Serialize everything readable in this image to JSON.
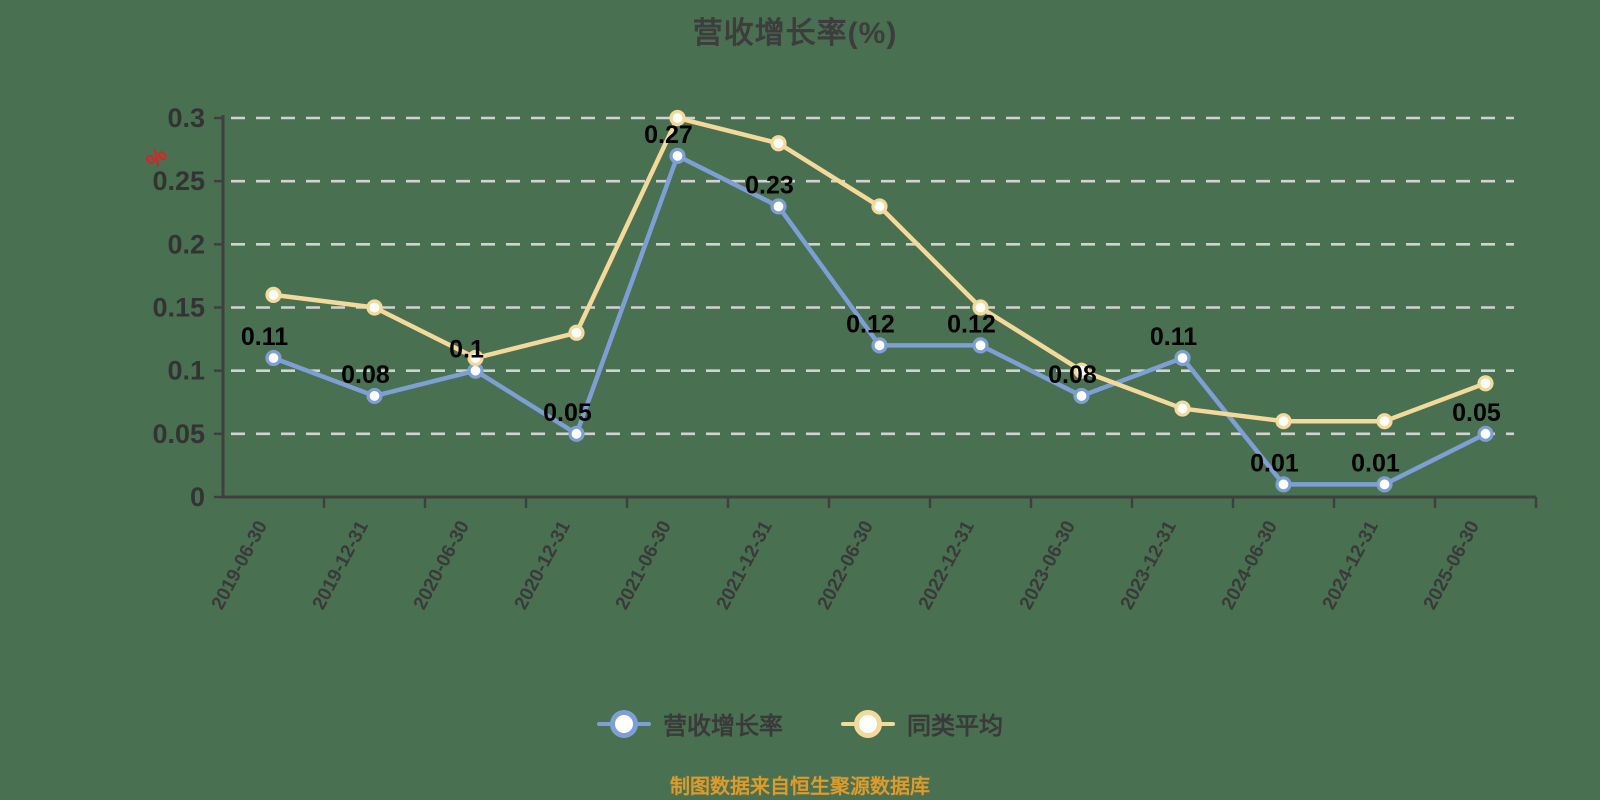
{
  "title": "营收增长率(%)",
  "y_axis_unit": "%",
  "caption": "制图数据来自恒生聚源数据库",
  "colors": {
    "background": "#4a7052",
    "grid": "#d2d2d2",
    "axis": "#3f3f3f",
    "axis_label": "#333333",
    "x_axis_label": "#3a3a3a",
    "data_label": "#000000",
    "title": "#3d3d3d",
    "legend_label": "#3a3a3a",
    "caption": "#dd9b2a",
    "unit": "#e02020",
    "marker_fill": "#ffffff",
    "series_blue": "#7e9fd4",
    "series_yellow": "#f3da9a"
  },
  "chart_data": {
    "type": "line",
    "title": "营收增长率(%)",
    "xlabel": "",
    "ylabel": "%",
    "ylim": [
      0,
      0.3
    ],
    "yticks": [
      0,
      0.05,
      0.1,
      0.15,
      0.2,
      0.25,
      0.3
    ],
    "grid": "dashed horizontal",
    "legend_position": "bottom",
    "categories": [
      "2019-06-30",
      "2019-12-31",
      "2020-06-30",
      "2020-12-31",
      "2021-06-30",
      "2021-12-31",
      "2022-06-30",
      "2022-12-31",
      "2023-06-30",
      "2023-12-31",
      "2024-06-30",
      "2024-12-31",
      "2025-06-30"
    ],
    "series": [
      {
        "name": "营收增长率",
        "color": "#7e9fd4",
        "show_labels": true,
        "values": [
          0.11,
          0.08,
          0.1,
          0.05,
          0.27,
          0.23,
          0.12,
          0.12,
          0.08,
          0.11,
          0.01,
          0.01,
          0.05
        ]
      },
      {
        "name": "同类平均",
        "color": "#f3da9a",
        "show_labels": false,
        "values": [
          0.16,
          0.15,
          0.11,
          0.13,
          0.3,
          0.28,
          0.23,
          0.15,
          0.1,
          0.07,
          0.06,
          0.06,
          0.09
        ]
      }
    ]
  }
}
